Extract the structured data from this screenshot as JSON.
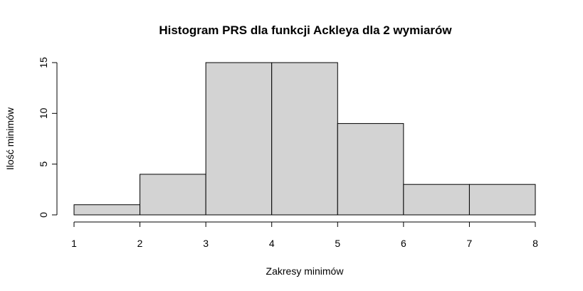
{
  "chart_data": {
    "type": "bar",
    "subtype": "histogram",
    "title": "Histogram PRS dla funkcji Ackleya dla 2 wymiarów",
    "xlabel": "Zakresy minimów",
    "ylabel": "Ilość minimów",
    "bins": [
      {
        "from": 1,
        "to": 2,
        "count": 1
      },
      {
        "from": 2,
        "to": 3,
        "count": 4
      },
      {
        "from": 3,
        "to": 4,
        "count": 15
      },
      {
        "from": 4,
        "to": 5,
        "count": 15
      },
      {
        "from": 5,
        "to": 6,
        "count": 9
      },
      {
        "from": 6,
        "to": 7,
        "count": 3
      },
      {
        "from": 7,
        "to": 8,
        "count": 3
      }
    ],
    "xlim": [
      1,
      8
    ],
    "ylim": [
      0,
      15
    ],
    "xticks": [
      "1",
      "2",
      "3",
      "4",
      "5",
      "6",
      "7",
      "8"
    ],
    "yticks": [
      "0",
      "5",
      "10",
      "15"
    ],
    "grid": false,
    "bar_color": "#d3d3d3"
  }
}
